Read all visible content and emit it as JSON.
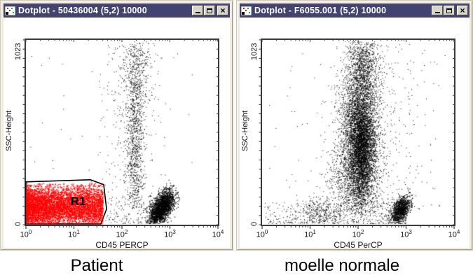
{
  "chrome": {
    "close_glyph": "×",
    "titlebar_color": "#43436F",
    "frame_color": "#F1EBDF",
    "button_face": "#D9D5C9"
  },
  "windows": [
    {
      "title": "Dotplot - 50436004 (5,2) 10000"
    },
    {
      "title": "Dotplot - F6055.001 (5,2) 10000"
    }
  ],
  "captions": {
    "left": "Patient",
    "right": "moelle normale"
  },
  "chart_data": [
    {
      "type": "scatter",
      "title": "Dotplot - 50436004 (5,2) 10000",
      "caption": "Patient",
      "xlabel": "CD45 PERCP",
      "ylabel": "SSC-Height",
      "x_scale": "log",
      "x_tick_base": "10",
      "x_tick_exponents": [
        0,
        1,
        2,
        3,
        4
      ],
      "xlim_decades": [
        0,
        4
      ],
      "ylim": [
        0,
        1023
      ],
      "y_axis_min_label": "0",
      "y_axis_max_label": "1023",
      "grid": false,
      "dot_colors": {
        "default": "#000000",
        "gated": "#FF0000"
      },
      "regions": [
        {
          "label": "R1",
          "outline_color": "#000000",
          "dot_color": "#FF0000",
          "vertices": [
            [
              0.0,
              237
            ],
            [
              1.34,
              249
            ],
            [
              1.62,
              222
            ],
            [
              1.68,
              86
            ],
            [
              1.56,
              4
            ],
            [
              0.0,
              4
            ]
          ],
          "label_pos": [
            0.93,
            130
          ]
        }
      ],
      "clusters": [
        {
          "name": "R1-blast-population",
          "color": "#FF0000",
          "count": 5200,
          "size": 1.4,
          "x": {
            "dist": "power",
            "min": 0.0,
            "max": 1.62,
            "p": 1.3
          },
          "y": {
            "dist": "gauss",
            "mean": 100,
            "sd": 58
          },
          "clip": {
            "ymin": 5,
            "ymax": 232,
            "xmin": 0.0,
            "xmax": 1.6
          }
        },
        {
          "name": "myeloid-streak",
          "color": "#000000",
          "count": 950,
          "size": 1,
          "x": {
            "dist": "gauss",
            "mean": 2.27,
            "sd": 0.09
          },
          "y": {
            "dist": "gauss",
            "mean": 480,
            "sd": 300
          },
          "clip": {
            "ymin": 90,
            "ymax": 1010
          }
        },
        {
          "name": "streak-halo",
          "color": "#000000",
          "count": 320,
          "size": 1,
          "x": {
            "dist": "gauss",
            "mean": 2.12,
            "sd": 0.3
          },
          "y": {
            "dist": "uniform",
            "min": 120,
            "max": 1000
          },
          "clip": {
            "xmin": 1.35,
            "xmax": 2.95
          }
        },
        {
          "name": "granulocyte-top",
          "color": "#000000",
          "count": 220,
          "size": 1,
          "x": {
            "dist": "gauss",
            "mean": 2.33,
            "sd": 0.18
          },
          "y": {
            "dist": "gauss",
            "mean": 880,
            "sd": 100
          },
          "clip": {
            "ymin": 680,
            "ymax": 1015,
            "xmin": 1.8,
            "xmax": 2.9
          }
        },
        {
          "name": "lymphocytes",
          "color": "#000000",
          "count": 2100,
          "size": 1.2,
          "x": {
            "dist": "gauss",
            "mean": 2.82,
            "sd": 0.13
          },
          "y": {
            "dist": "gauss",
            "mean": 95,
            "sd": 50
          },
          "rho": 0.55,
          "clip": {
            "ymin": 8,
            "ymax": 270,
            "xmin": 2.35,
            "xmax": 3.2
          }
        },
        {
          "name": "debris-bottom",
          "color": "#000000",
          "count": 110,
          "size": 1,
          "x": {
            "dist": "uniform",
            "min": 1.65,
            "max": 2.6
          },
          "y": {
            "dist": "power",
            "min": 8,
            "max": 130,
            "p": 1.5
          }
        },
        {
          "name": "sparse-outliers",
          "color": "#000000",
          "count": 55,
          "size": 1,
          "x": {
            "dist": "uniform",
            "min": 0.05,
            "max": 3.6
          },
          "y": {
            "dist": "uniform",
            "min": 40,
            "max": 1005
          }
        }
      ]
    },
    {
      "type": "scatter",
      "title": "Dotplot - F6055.001 (5,2) 10000",
      "caption": "moelle normale",
      "xlabel": "CD45 PerCP",
      "ylabel": "SSC-Height",
      "x_scale": "log",
      "x_tick_base": "10",
      "x_tick_exponents": [
        0,
        1,
        2,
        3,
        4
      ],
      "xlim_decades": [
        0,
        4
      ],
      "ylim": [
        0,
        1023
      ],
      "y_axis_min_label": "0",
      "y_axis_max_label": "1023",
      "grid": false,
      "dot_colors": {
        "default": "#000000"
      },
      "regions": [],
      "clusters": [
        {
          "name": "marrow-cloud",
          "color": "#000000",
          "count": 4200,
          "size": 1,
          "x": {
            "dist": "gauss",
            "mean": 2.02,
            "sd": 0.21
          },
          "y": {
            "dist": "gauss",
            "mean": 500,
            "sd": 215
          },
          "clip": {
            "ymin": 60,
            "ymax": 1015,
            "xmin": 1.1,
            "xmax": 3.0
          }
        },
        {
          "name": "cloud-core",
          "color": "#000000",
          "count": 1900,
          "size": 1.2,
          "x": {
            "dist": "gauss",
            "mean": 2.07,
            "sd": 0.12
          },
          "y": {
            "dist": "gauss",
            "mean": 420,
            "sd": 140
          },
          "clip": {
            "ymin": 100,
            "ymax": 800
          }
        },
        {
          "name": "cloud-top",
          "color": "#000000",
          "count": 900,
          "size": 1,
          "x": {
            "dist": "gauss",
            "mean": 2.1,
            "sd": 0.16
          },
          "y": {
            "dist": "gauss",
            "mean": 860,
            "sd": 110
          },
          "clip": {
            "ymin": 620,
            "ymax": 1018
          }
        },
        {
          "name": "cloud-low",
          "color": "#000000",
          "count": 650,
          "size": 1,
          "x": {
            "dist": "gauss",
            "mean": 1.85,
            "sd": 0.28
          },
          "y": {
            "dist": "gauss",
            "mean": 230,
            "sd": 110
          },
          "clip": {
            "ymin": 40,
            "ymax": 480,
            "xmin": 0.9
          }
        },
        {
          "name": "lymphocytes",
          "color": "#000000",
          "count": 950,
          "size": 1.2,
          "x": {
            "dist": "gauss",
            "mean": 2.88,
            "sd": 0.1
          },
          "y": {
            "dist": "gauss",
            "mean": 85,
            "sd": 38
          },
          "rho": 0.5,
          "clip": {
            "ymin": 8,
            "ymax": 220
          }
        },
        {
          "name": "bottom-band",
          "color": "#000000",
          "count": 520,
          "size": 1,
          "x": {
            "dist": "power",
            "min": 0.05,
            "max": 3.0,
            "p": 0.85
          },
          "y": {
            "dist": "power",
            "min": 8,
            "max": 135,
            "p": 1.5
          }
        },
        {
          "name": "bottom-clump",
          "color": "#000000",
          "count": 260,
          "size": 1,
          "x": {
            "dist": "gauss",
            "mean": 1.15,
            "sd": 0.22
          },
          "y": {
            "dist": "gauss",
            "mean": 70,
            "sd": 42
          },
          "clip": {
            "ymin": 8,
            "ymax": 200
          }
        },
        {
          "name": "right-sparse",
          "color": "#000000",
          "count": 230,
          "size": 1,
          "x": {
            "dist": "gauss",
            "mean": 2.7,
            "sd": 0.45
          },
          "y": {
            "dist": "uniform",
            "min": 80,
            "max": 1000
          },
          "clip": {
            "xmin": 2.25,
            "xmax": 3.85
          }
        },
        {
          "name": "left-sparse",
          "color": "#000000",
          "count": 28,
          "size": 1,
          "x": {
            "dist": "uniform",
            "min": 0.1,
            "max": 1.3
          },
          "y": {
            "dist": "uniform",
            "min": 150,
            "max": 950
          }
        }
      ]
    }
  ]
}
